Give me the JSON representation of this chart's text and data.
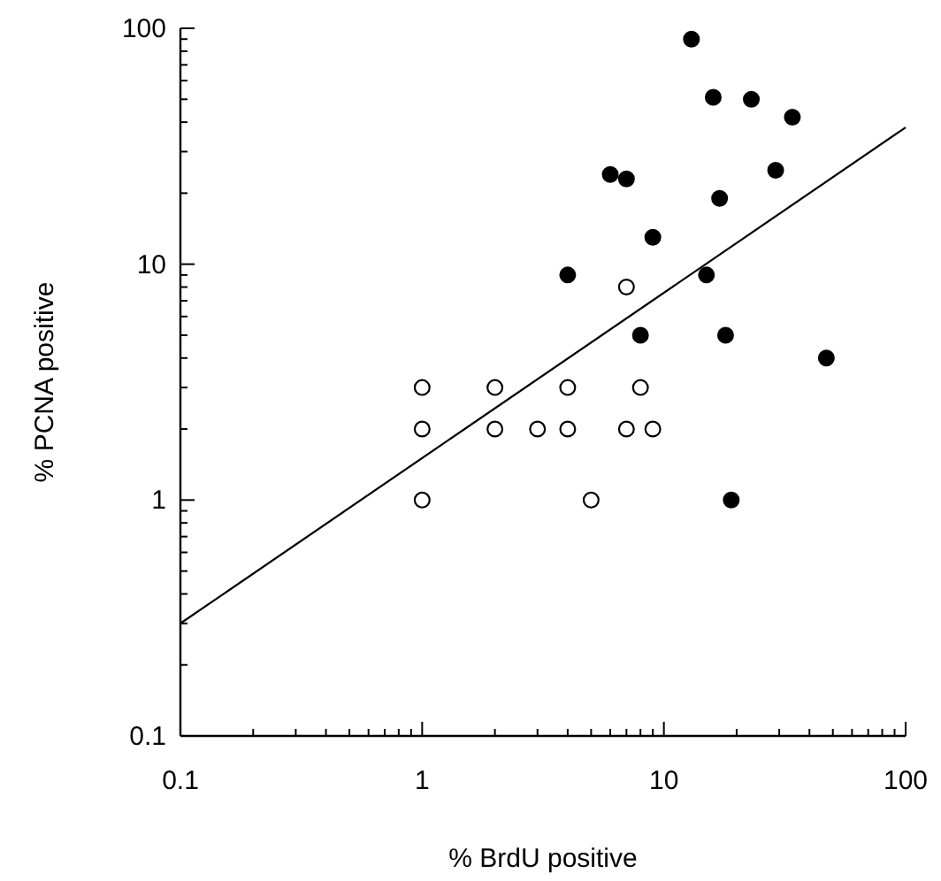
{
  "chart_data": {
    "type": "scatter",
    "xlabel": "% BrdU positive",
    "ylabel": "% PCNA positive",
    "log": "xy",
    "xlim": [
      0.1,
      100
    ],
    "ylim": [
      0.1,
      100
    ],
    "xticks": [
      0.1,
      1,
      10,
      100
    ],
    "yticks": [
      0.1,
      1,
      10,
      100
    ],
    "grid": false,
    "marker": "circle",
    "series": [
      {
        "color": "#ffffff",
        "x": [
          1,
          1,
          1,
          2,
          2,
          3,
          4,
          4,
          7,
          8,
          9,
          5,
          7
        ],
        "values": [
          3,
          2,
          1,
          3,
          2,
          2,
          3,
          2,
          2,
          3,
          2,
          1,
          8
        ]
      },
      {
        "color": "#000000",
        "x": [
          13,
          16,
          23,
          34,
          6,
          7,
          29,
          17,
          9,
          4,
          15,
          8,
          18,
          47,
          19
        ],
        "values": [
          90,
          51,
          50,
          42,
          24,
          23,
          25,
          19,
          13,
          9,
          9,
          5,
          5,
          4,
          1
        ]
      },
      {
        "type": "line",
        "color": "#000000",
        "line_style": "solid",
        "marker": "none",
        "x": [
          0.1,
          100
        ],
        "values": [
          0.3,
          38
        ]
      }
    ]
  }
}
